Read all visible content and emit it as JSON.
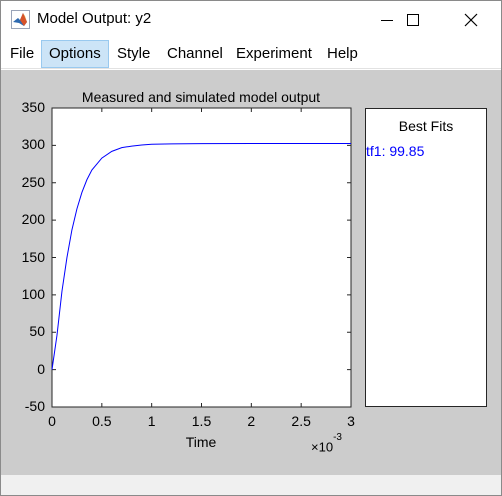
{
  "window": {
    "title": "Model Output: y2",
    "controls": {
      "minimize": "minimize-icon",
      "maximize": "maximize-icon",
      "close": "close-icon"
    }
  },
  "menu": {
    "items": [
      {
        "label": "File",
        "active": false
      },
      {
        "label": "Options",
        "active": true
      },
      {
        "label": "Style",
        "active": false
      },
      {
        "label": "Channel",
        "active": false
      },
      {
        "label": "Experiment",
        "active": false
      },
      {
        "label": "Help",
        "active": false
      }
    ]
  },
  "chart_data": {
    "type": "line",
    "title": "Measured and simulated model output",
    "xlabel": "Time",
    "x_exponent_base": "×10",
    "x_exponent_power": "-3",
    "xlim": [
      0,
      3
    ],
    "ylim": [
      -50,
      350
    ],
    "xticks": [
      "0",
      "0.5",
      "1",
      "1.5",
      "2",
      "2.5",
      "3"
    ],
    "yticks": [
      "350",
      "300",
      "250",
      "200",
      "150",
      "100",
      "50",
      "0",
      "-50"
    ],
    "series": [
      {
        "color": "#0000ff",
        "x": [
          0,
          0.05,
          0.1,
          0.15,
          0.2,
          0.25,
          0.3,
          0.35,
          0.4,
          0.5,
          0.6,
          0.7,
          0.8,
          0.9,
          1.0,
          1.2,
          1.5,
          2.0,
          2.5,
          3.0
        ],
        "y": [
          0,
          46,
          105,
          150,
          187,
          215,
          237,
          254,
          267,
          283,
          292,
          297,
          299,
          300.5,
          301.5,
          302,
          302.3,
          302.5,
          302.5,
          302.5
        ]
      }
    ]
  },
  "fits": {
    "title": "Best Fits",
    "entries": [
      {
        "label": "tf1: 99.85",
        "color": "#0000ff"
      }
    ]
  }
}
